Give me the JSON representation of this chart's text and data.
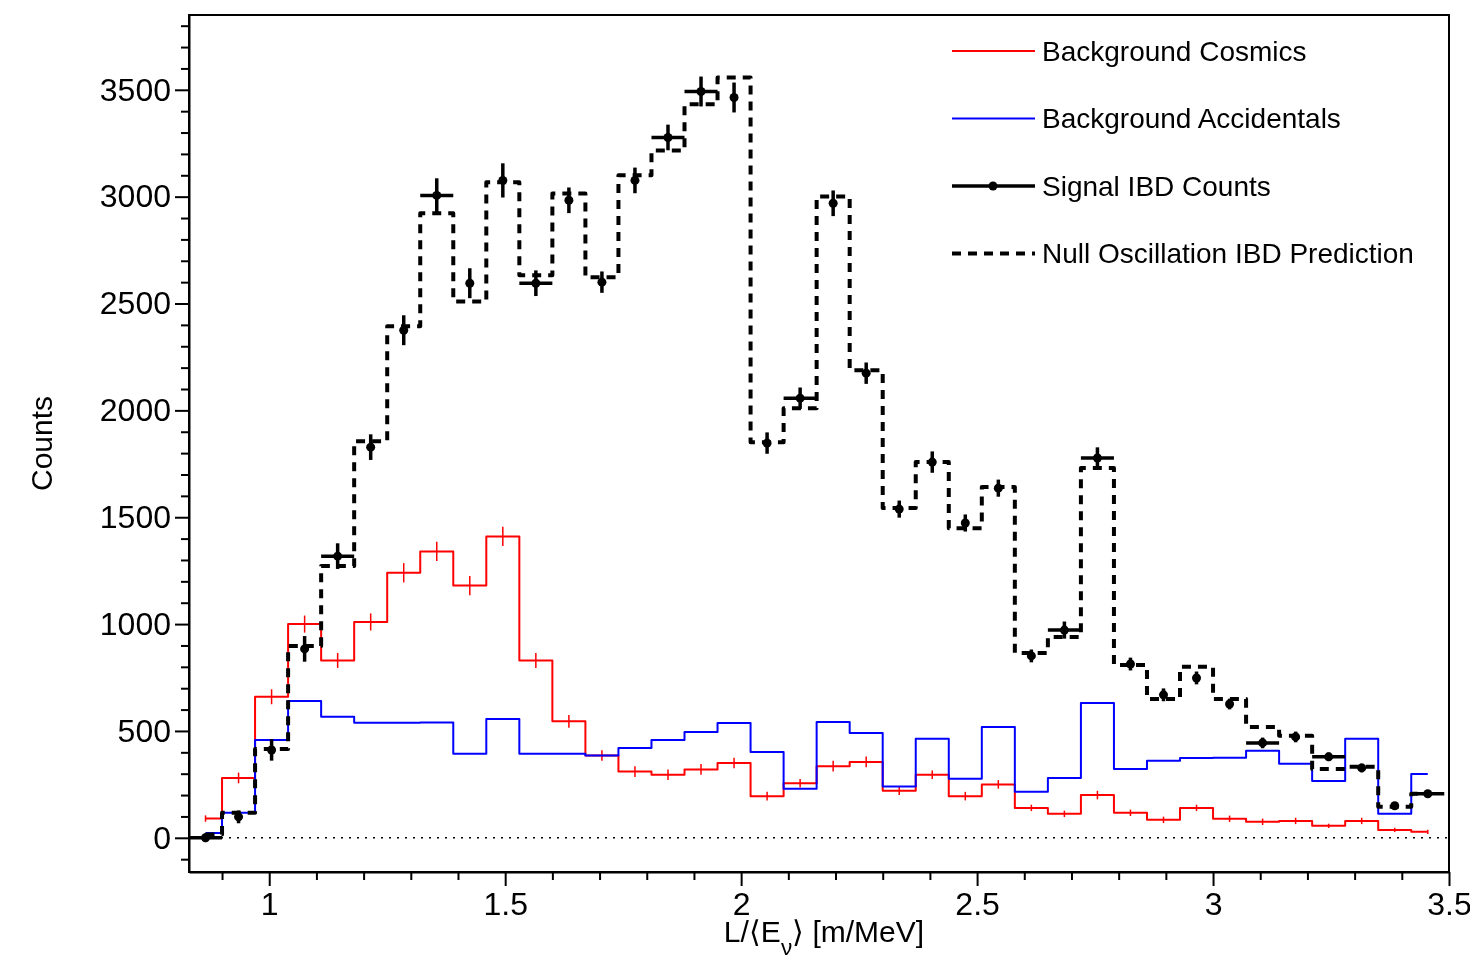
{
  "chart_data": {
    "type": "step",
    "xlabel": "L/⟨E$_{ν}$⟩ [m/MeV]",
    "ylabel": "Counts",
    "x": [
      0.865,
      0.935,
      1.005,
      1.075,
      1.145,
      1.215,
      1.285,
      1.355,
      1.425,
      1.495,
      1.565,
      1.635,
      1.705,
      1.775,
      1.845,
      1.915,
      1.985,
      2.055,
      2.125,
      2.195,
      2.265,
      2.335,
      2.405,
      2.475,
      2.545,
      2.615,
      2.685,
      2.755,
      2.825,
      2.895,
      2.965,
      3.035,
      3.105,
      3.175,
      3.245,
      3.315,
      3.385,
      3.455
    ],
    "series": [
      {
        "name": "Background Cosmics",
        "color": "#ff0000",
        "values": [
          90,
          280,
          660,
          1000,
          830,
          1010,
          1240,
          1340,
          1180,
          1410,
          830,
          545,
          385,
          310,
          295,
          320,
          350,
          195,
          255,
          335,
          355,
          220,
          295,
          195,
          250,
          140,
          112,
          200,
          117,
          84,
          140,
          89,
          75,
          79,
          56,
          79,
          37,
          28
        ],
        "errors": [
          15,
          25,
          35,
          40,
          35,
          40,
          45,
          45,
          45,
          45,
          35,
          30,
          25,
          25,
          25,
          25,
          25,
          20,
          20,
          25,
          25,
          20,
          20,
          20,
          20,
          15,
          15,
          20,
          15,
          15,
          15,
          15,
          15,
          15,
          10,
          15,
          10,
          10
        ]
      },
      {
        "name": "Background Accidentals",
        "color": "#0000ff",
        "values": [
          23,
          117,
          458,
          640,
          566,
          538,
          538,
          540,
          393,
          556,
          393,
          393,
          385,
          420,
          458,
          495,
          537,
          402,
          229,
          542,
          490,
          240,
          463,
          276,
          519,
          215,
          280,
          631,
          322,
          360,
          374,
          375,
          407,
          346,
          266,
          463,
          112,
          299
        ]
      },
      {
        "name": "Signal IBD Counts",
        "type": "scatter",
        "color": "#000000",
        "marker": "circle",
        "values": [
          0,
          98,
          411,
          884,
          1318,
          1828,
          2375,
          3006,
          2595,
          3076,
          2595,
          2983,
          2600,
          3076,
          3277,
          3492,
          3464,
          1847,
          2057,
          2969,
          2174,
          1538,
          1758,
          1473,
          1636,
          851,
          972,
          1777,
          813,
          669,
          748,
          626,
          444,
          472,
          379,
          327,
          150,
          206
        ],
        "errors": [
          20,
          30,
          50,
          60,
          60,
          60,
          70,
          80,
          70,
          80,
          60,
          60,
          50,
          60,
          60,
          70,
          70,
          50,
          50,
          60,
          50,
          40,
          50,
          40,
          40,
          30,
          40,
          50,
          30,
          30,
          30,
          25,
          25,
          25,
          20,
          20,
          15,
          15
        ],
        "xerrors": [
          0.035,
          null,
          null,
          null,
          0.035,
          null,
          null,
          0.035,
          null,
          null,
          0.035,
          null,
          null,
          null,
          0.035,
          0.035,
          null,
          null,
          0.035,
          null,
          null,
          null,
          null,
          null,
          null,
          null,
          0.035,
          0.035,
          null,
          null,
          null,
          null,
          0.035,
          null,
          0.035,
          null,
          null,
          0.035
        ]
      },
      {
        "name": "Null Oscillation IBD Prediction",
        "color": "#000000",
        "line_style": "dashed",
        "values": [
          15,
          117,
          416,
          898,
          1272,
          1856,
          2394,
          2922,
          2510,
          3067,
          2632,
          3015,
          2623,
          3100,
          3216,
          3432,
          3558,
          1851,
          2010,
          3001,
          2188,
          1543,
          1758,
          1449,
          1641,
          865,
          940,
          1730,
          809,
          650,
          800,
          650,
          519,
          477,
          322,
          332,
          145,
          206
        ]
      }
    ],
    "xlim": [
      0.83,
      3.5
    ],
    "ylim": [
      -160,
      3850
    ],
    "xticks": [
      {
        "value": 0.9,
        "label": null
      },
      1,
      {
        "value": 1.1,
        "label": null
      },
      {
        "value": 1.2,
        "label": null
      },
      {
        "value": 1.3,
        "label": null
      },
      {
        "value": 1.4,
        "label": null
      },
      1.5,
      {
        "value": 1.6,
        "label": null
      },
      {
        "value": 1.7,
        "label": null
      },
      {
        "value": 1.8,
        "label": null
      },
      {
        "value": 1.9,
        "label": null
      },
      2,
      {
        "value": 2.1,
        "label": null
      },
      {
        "value": 2.2,
        "label": null
      },
      {
        "value": 2.3,
        "label": null
      },
      {
        "value": 2.4,
        "label": null
      },
      2.5,
      {
        "value": 2.6,
        "label": null
      },
      {
        "value": 2.7,
        "label": null
      },
      {
        "value": 2.8,
        "label": null
      },
      {
        "value": 2.9,
        "label": null
      },
      3,
      {
        "value": 3.1,
        "label": null
      },
      {
        "value": 3.2,
        "label": null
      },
      {
        "value": 3.3,
        "label": null
      },
      {
        "value": 3.4,
        "label": null
      },
      3.5
    ],
    "yticks": [
      {
        "value": -100,
        "label": null
      },
      0,
      {
        "value": 100,
        "label": null
      },
      {
        "value": 200,
        "label": null
      },
      {
        "value": 300,
        "label": null
      },
      {
        "value": 400,
        "label": null
      },
      500,
      {
        "value": 600,
        "label": null
      },
      {
        "value": 700,
        "label": null
      },
      {
        "value": 800,
        "label": null
      },
      {
        "value": 900,
        "label": null
      },
      1000,
      {
        "value": 1100,
        "label": null
      },
      {
        "value": 1200,
        "label": null
      },
      {
        "value": 1300,
        "label": null
      },
      {
        "value": 1400,
        "label": null
      },
      1500,
      {
        "value": 1600,
        "label": null
      },
      {
        "value": 1700,
        "label": null
      },
      {
        "value": 1800,
        "label": null
      },
      {
        "value": 1900,
        "label": null
      },
      2000,
      {
        "value": 2100,
        "label": null
      },
      {
        "value": 2200,
        "label": null
      },
      {
        "value": 2300,
        "label": null
      },
      {
        "value": 2400,
        "label": null
      },
      2500,
      {
        "value": 2600,
        "label": null
      },
      {
        "value": 2700,
        "label": null
      },
      {
        "value": 2800,
        "label": null
      },
      {
        "value": 2900,
        "label": null
      },
      3000,
      {
        "value": 3100,
        "label": null
      },
      {
        "value": 3200,
        "label": null
      },
      {
        "value": 3300,
        "label": null
      },
      {
        "value": 3400,
        "label": null
      },
      3500,
      {
        "value": 3600,
        "label": null
      },
      {
        "value": 3700,
        "label": null
      },
      {
        "value": 3800,
        "label": null
      }
    ],
    "ref_lines": [
      {
        "axis": "y",
        "value": 0,
        "line_style": "dotted",
        "color": "#000000"
      }
    ],
    "legend": "top right"
  }
}
